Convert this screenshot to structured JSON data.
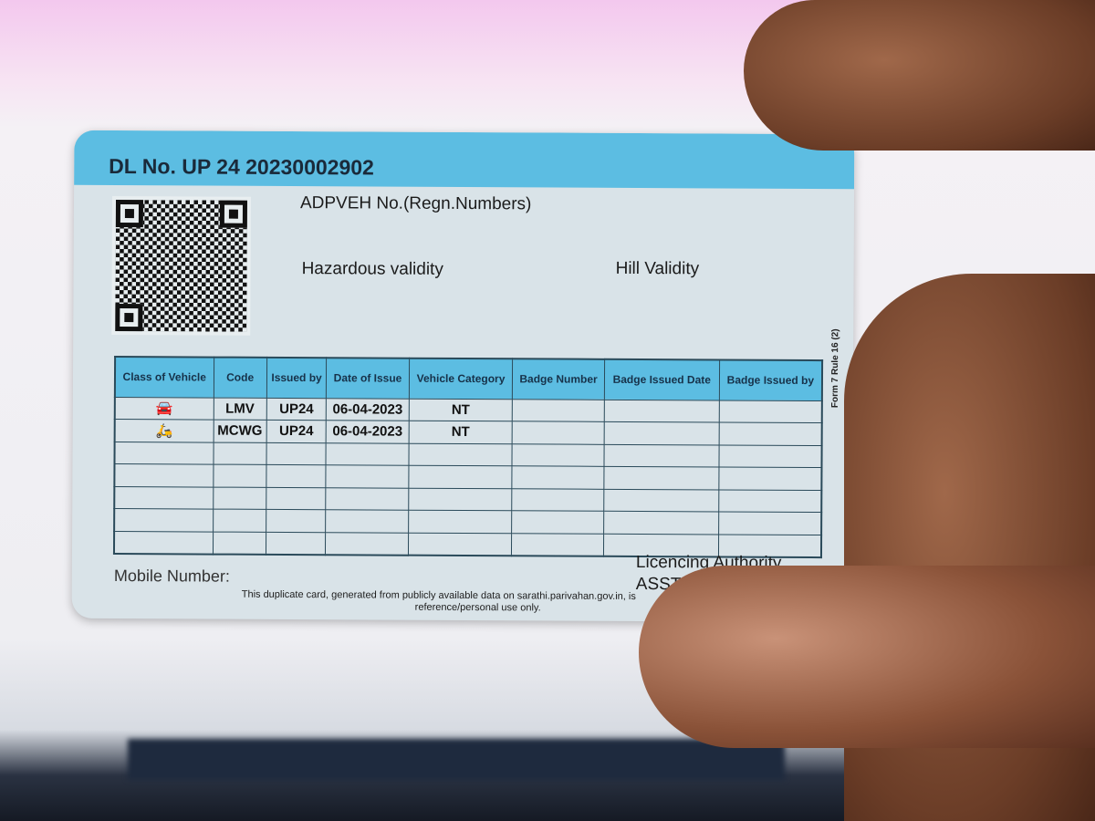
{
  "card": {
    "dl_number": "DL No. UP 24 20230002902",
    "adpveh_label": "ADPVEH No.(Regn.Numbers)",
    "hazardous_label": "Hazardous validity",
    "hill_label": "Hill Validity",
    "side_text": "Form 7 Rule 16 (2)",
    "table": {
      "headers": [
        "Class of Vehicle",
        "Code",
        "Issued by",
        "Date of Issue",
        "Vehicle Category",
        "Badge Number",
        "Badge Issued Date",
        "Badge Issued by"
      ],
      "rows": [
        {
          "icon": "car-icon",
          "code": "LMV",
          "issued_by": "UP24",
          "date": "06-04-2023",
          "category": "NT"
        },
        {
          "icon": "motorcycle-icon",
          "code": "MCWG",
          "issued_by": "UP24",
          "date": "06-04-2023",
          "category": "NT"
        }
      ]
    },
    "mobile_label": "Mobile Number:",
    "authority_label": "Licencing Authority",
    "authority_name": "ASST.RTO, B",
    "disclaimer_line1": "This duplicate card, generated from publicly available data on sarathi.parivahan.gov.in, is",
    "disclaimer_line2": "reference/personal use only."
  },
  "colors": {
    "band": "#5cbde2",
    "card": "#d9e3e8"
  }
}
